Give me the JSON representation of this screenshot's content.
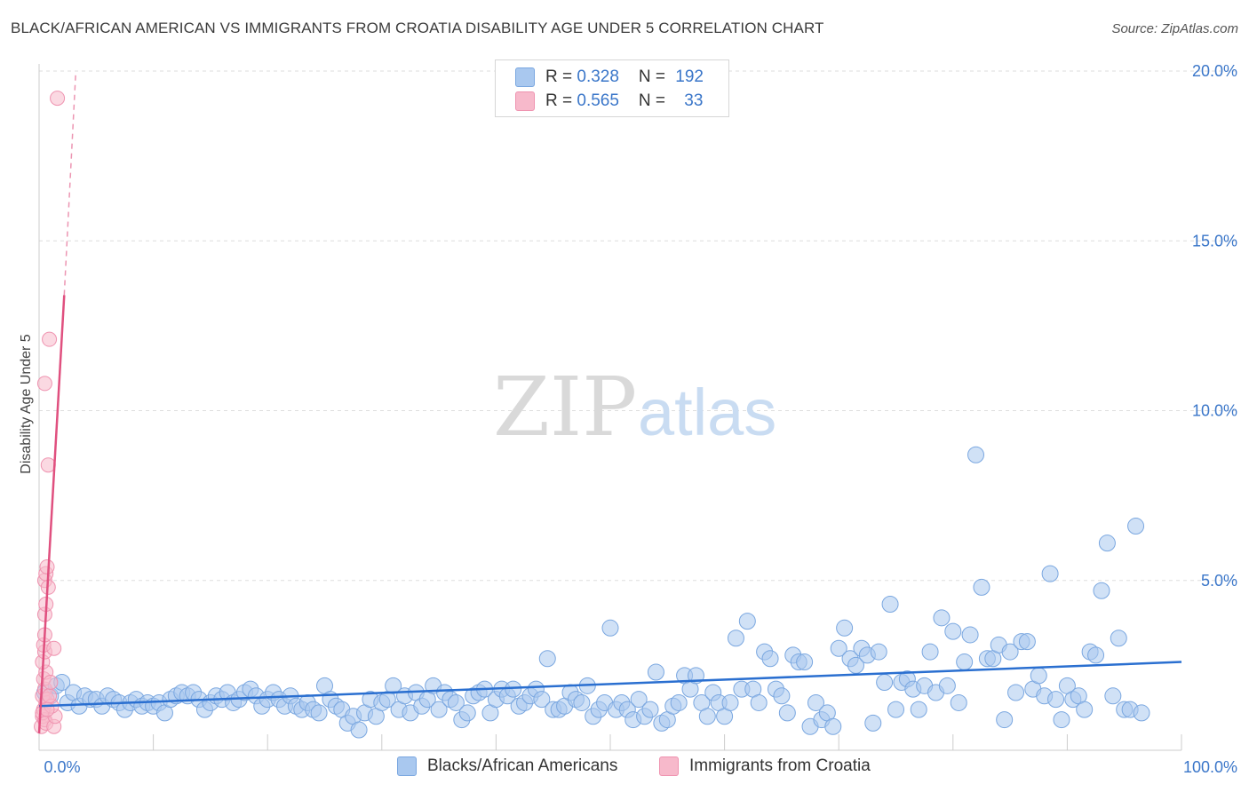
{
  "title": "BLACK/AFRICAN AMERICAN VS IMMIGRANTS FROM CROATIA DISABILITY AGE UNDER 5 CORRELATION CHART",
  "source": "Source: ZipAtlas.com",
  "watermark": {
    "zip": "ZIP",
    "atlas": "atlas"
  },
  "colors": {
    "blue_fill": "#a9c8ef",
    "blue_stroke": "#7aa7e0",
    "blue_line": "#2a6fd0",
    "pink_fill": "#f7b9cb",
    "pink_stroke": "#ef93b0",
    "pink_line": "#e0507f",
    "tick_text": "#3a76c9",
    "grid": "#dddddd"
  },
  "legend": {
    "rows": [
      {
        "r_label": "R = ",
        "r_value": "0.328",
        "n_label": "N = ",
        "n_value": "192",
        "color": "#a9c8ef"
      },
      {
        "r_label": "R = ",
        "r_value": "0.565",
        "n_label": "N = ",
        "n_value": "33",
        "color": "#f7b9cb"
      }
    ]
  },
  "chart_data": {
    "type": "scatter",
    "ylabel": "Disability Age Under 5",
    "xlabel": "",
    "xlim": [
      0,
      100
    ],
    "ylim": [
      0,
      20
    ],
    "x_tick_labels": [
      "0.0%",
      "100.0%"
    ],
    "y_ticks": [
      5,
      10,
      15,
      20
    ],
    "y_tick_labels": [
      "5.0%",
      "10.0%",
      "15.0%",
      "20.0%"
    ],
    "grid": true,
    "legend_position": "top-center",
    "series": [
      {
        "name": "Blacks/African Americans",
        "color": "#a9c8ef",
        "r": 0.328,
        "n": 192,
        "trend": {
          "x": [
            0,
            100
          ],
          "y": [
            1.3,
            2.6
          ]
        },
        "points": [
          [
            0.5,
            1.7
          ],
          [
            1.0,
            1.6
          ],
          [
            1.5,
            1.9
          ],
          [
            2.0,
            2.0
          ],
          [
            2.5,
            1.4
          ],
          [
            3.0,
            1.7
          ],
          [
            3.5,
            1.3
          ],
          [
            4.0,
            1.6
          ],
          [
            4.5,
            1.5
          ],
          [
            5.0,
            1.5
          ],
          [
            5.5,
            1.3
          ],
          [
            6.0,
            1.6
          ],
          [
            6.5,
            1.5
          ],
          [
            7.0,
            1.4
          ],
          [
            7.5,
            1.2
          ],
          [
            8.0,
            1.4
          ],
          [
            8.5,
            1.5
          ],
          [
            9.0,
            1.3
          ],
          [
            9.5,
            1.4
          ],
          [
            10.0,
            1.3
          ],
          [
            10.5,
            1.4
          ],
          [
            11.0,
            1.1
          ],
          [
            11.5,
            1.5
          ],
          [
            12.0,
            1.6
          ],
          [
            12.5,
            1.7
          ],
          [
            13.0,
            1.6
          ],
          [
            13.5,
            1.7
          ],
          [
            14.0,
            1.5
          ],
          [
            14.5,
            1.2
          ],
          [
            15.0,
            1.4
          ],
          [
            15.5,
            1.6
          ],
          [
            16.0,
            1.5
          ],
          [
            16.5,
            1.7
          ],
          [
            17.0,
            1.4
          ],
          [
            17.5,
            1.5
          ],
          [
            18.0,
            1.7
          ],
          [
            18.5,
            1.8
          ],
          [
            19.0,
            1.6
          ],
          [
            19.5,
            1.3
          ],
          [
            20.0,
            1.5
          ],
          [
            20.5,
            1.7
          ],
          [
            21.0,
            1.5
          ],
          [
            21.5,
            1.3
          ],
          [
            22.0,
            1.6
          ],
          [
            22.5,
            1.3
          ],
          [
            23.0,
            1.2
          ],
          [
            23.5,
            1.4
          ],
          [
            24.0,
            1.2
          ],
          [
            24.5,
            1.1
          ],
          [
            25.0,
            1.9
          ],
          [
            25.5,
            1.5
          ],
          [
            26.0,
            1.3
          ],
          [
            26.5,
            1.2
          ],
          [
            27.0,
            0.8
          ],
          [
            27.5,
            1.0
          ],
          [
            28.0,
            0.6
          ],
          [
            28.5,
            1.1
          ],
          [
            29.0,
            1.5
          ],
          [
            29.5,
            1.0
          ],
          [
            30.0,
            1.4
          ],
          [
            30.5,
            1.5
          ],
          [
            31.0,
            1.9
          ],
          [
            31.5,
            1.2
          ],
          [
            32.0,
            1.6
          ],
          [
            32.5,
            1.1
          ],
          [
            33.0,
            1.7
          ],
          [
            33.5,
            1.3
          ],
          [
            34.0,
            1.5
          ],
          [
            34.5,
            1.9
          ],
          [
            35.0,
            1.2
          ],
          [
            35.5,
            1.7
          ],
          [
            36.0,
            1.5
          ],
          [
            36.5,
            1.4
          ],
          [
            37.0,
            0.9
          ],
          [
            37.5,
            1.1
          ],
          [
            38.0,
            1.6
          ],
          [
            38.5,
            1.7
          ],
          [
            39.0,
            1.8
          ],
          [
            39.5,
            1.1
          ],
          [
            40.0,
            1.5
          ],
          [
            40.5,
            1.8
          ],
          [
            41.0,
            1.6
          ],
          [
            41.5,
            1.8
          ],
          [
            42.0,
            1.3
          ],
          [
            42.5,
            1.4
          ],
          [
            43.0,
            1.6
          ],
          [
            43.5,
            1.8
          ],
          [
            44.0,
            1.5
          ],
          [
            44.5,
            2.7
          ],
          [
            45.0,
            1.2
          ],
          [
            45.5,
            1.2
          ],
          [
            46.0,
            1.3
          ],
          [
            46.5,
            1.7
          ],
          [
            47.0,
            1.5
          ],
          [
            47.5,
            1.4
          ],
          [
            48.0,
            1.9
          ],
          [
            48.5,
            1.0
          ],
          [
            49.0,
            1.2
          ],
          [
            49.5,
            1.4
          ],
          [
            50.0,
            3.6
          ],
          [
            50.5,
            1.2
          ],
          [
            51.0,
            1.4
          ],
          [
            51.5,
            1.2
          ],
          [
            52.0,
            0.9
          ],
          [
            52.5,
            1.5
          ],
          [
            53.0,
            1.0
          ],
          [
            53.5,
            1.2
          ],
          [
            54.0,
            2.3
          ],
          [
            54.5,
            0.8
          ],
          [
            55.0,
            0.9
          ],
          [
            55.5,
            1.3
          ],
          [
            56.0,
            1.4
          ],
          [
            56.5,
            2.2
          ],
          [
            57.0,
            1.8
          ],
          [
            57.5,
            2.2
          ],
          [
            58.0,
            1.4
          ],
          [
            58.5,
            1.0
          ],
          [
            59.0,
            1.7
          ],
          [
            59.5,
            1.4
          ],
          [
            60.0,
            1.0
          ],
          [
            60.5,
            1.4
          ],
          [
            61.0,
            3.3
          ],
          [
            61.5,
            1.8
          ],
          [
            62.0,
            3.8
          ],
          [
            62.5,
            1.8
          ],
          [
            63.0,
            1.4
          ],
          [
            63.5,
            2.9
          ],
          [
            64.0,
            2.7
          ],
          [
            64.5,
            1.8
          ],
          [
            65.0,
            1.6
          ],
          [
            65.5,
            1.1
          ],
          [
            66.0,
            2.8
          ],
          [
            66.5,
            2.6
          ],
          [
            67.0,
            2.6
          ],
          [
            67.5,
            0.7
          ],
          [
            68.0,
            1.4
          ],
          [
            68.5,
            0.9
          ],
          [
            69.0,
            1.1
          ],
          [
            69.5,
            0.7
          ],
          [
            70.0,
            3.0
          ],
          [
            70.5,
            3.6
          ],
          [
            71.0,
            2.7
          ],
          [
            71.5,
            2.5
          ],
          [
            72.0,
            3.0
          ],
          [
            72.5,
            2.8
          ],
          [
            73.0,
            0.8
          ],
          [
            73.5,
            2.9
          ],
          [
            74.0,
            2.0
          ],
          [
            74.5,
            4.3
          ],
          [
            75.0,
            1.2
          ],
          [
            75.5,
            2.0
          ],
          [
            76.0,
            2.1
          ],
          [
            76.5,
            1.8
          ],
          [
            77.0,
            1.2
          ],
          [
            77.5,
            1.9
          ],
          [
            78.0,
            2.9
          ],
          [
            78.5,
            1.7
          ],
          [
            79.0,
            3.9
          ],
          [
            79.5,
            1.9
          ],
          [
            80.0,
            3.5
          ],
          [
            80.5,
            1.4
          ],
          [
            81.0,
            2.6
          ],
          [
            81.5,
            3.4
          ],
          [
            82.0,
            8.7
          ],
          [
            82.5,
            4.8
          ],
          [
            83.0,
            2.7
          ],
          [
            83.5,
            2.7
          ],
          [
            84.0,
            3.1
          ],
          [
            84.5,
            0.9
          ],
          [
            85.0,
            2.9
          ],
          [
            85.5,
            1.7
          ],
          [
            86.0,
            3.2
          ],
          [
            86.5,
            3.2
          ],
          [
            87.0,
            1.8
          ],
          [
            87.5,
            2.2
          ],
          [
            88.0,
            1.6
          ],
          [
            88.5,
            5.2
          ],
          [
            89.0,
            1.5
          ],
          [
            89.5,
            0.9
          ],
          [
            90.0,
            1.9
          ],
          [
            90.5,
            1.5
          ],
          [
            91.0,
            1.6
          ],
          [
            91.5,
            1.2
          ],
          [
            92.0,
            2.9
          ],
          [
            92.5,
            2.8
          ],
          [
            93.0,
            4.7
          ],
          [
            93.5,
            6.1
          ],
          [
            94.0,
            1.6
          ],
          [
            94.5,
            3.3
          ],
          [
            95.0,
            1.2
          ],
          [
            95.5,
            1.2
          ],
          [
            96.0,
            6.6
          ],
          [
            96.5,
            1.1
          ]
        ]
      },
      {
        "name": "Immigrants from Croatia",
        "color": "#f7b9cb",
        "r": 0.565,
        "n": 33,
        "trend": {
          "x": [
            0,
            2.2
          ],
          "y": [
            0.5,
            13.4
          ]
        },
        "trend_dashed": {
          "x": [
            2.2,
            3.2
          ],
          "y": [
            13.4,
            19.9
          ]
        },
        "points": [
          [
            0.2,
            0.7
          ],
          [
            0.3,
            1.0
          ],
          [
            0.4,
            1.2
          ],
          [
            0.5,
            0.9
          ],
          [
            0.6,
            1.4
          ],
          [
            0.3,
            1.6
          ],
          [
            0.5,
            1.8
          ],
          [
            0.4,
            2.1
          ],
          [
            0.6,
            2.3
          ],
          [
            0.3,
            2.6
          ],
          [
            0.5,
            2.9
          ],
          [
            0.4,
            3.1
          ],
          [
            0.5,
            3.4
          ],
          [
            0.3,
            1.1
          ],
          [
            0.6,
            0.8
          ],
          [
            0.7,
            1.5
          ],
          [
            0.5,
            4.0
          ],
          [
            0.6,
            4.3
          ],
          [
            0.5,
            5.0
          ],
          [
            0.6,
            5.2
          ],
          [
            0.7,
            5.4
          ],
          [
            0.5,
            10.8
          ],
          [
            0.8,
            8.4
          ],
          [
            0.9,
            12.1
          ],
          [
            1.6,
            19.2
          ],
          [
            1.3,
            0.7
          ],
          [
            1.4,
            1.0
          ],
          [
            1.1,
            1.3
          ],
          [
            1.3,
            3.0
          ],
          [
            0.9,
            1.6
          ],
          [
            1.0,
            2.0
          ],
          [
            0.8,
            4.8
          ],
          [
            0.7,
            1.2
          ]
        ]
      }
    ]
  }
}
